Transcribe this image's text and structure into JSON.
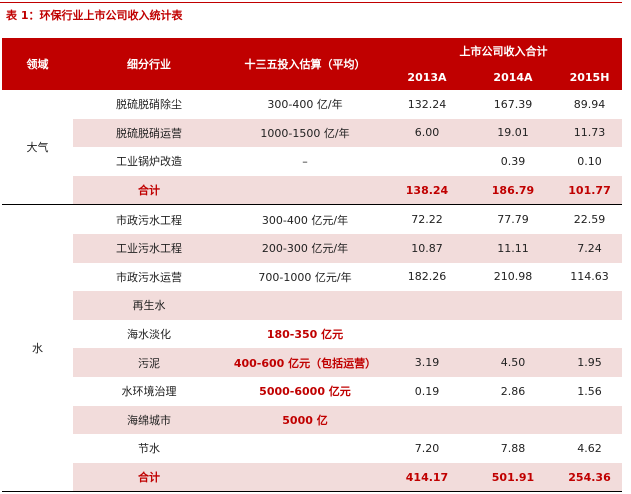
{
  "title": "表 1：环保行业上市公司收入统计表",
  "header": {
    "domain": "领域",
    "sub": "细分行业",
    "invest": "十三五投入估算（平均）",
    "revenue": "上市公司收入合计",
    "years": [
      "2013A",
      "2014A",
      "2015H"
    ]
  },
  "colors": {
    "accent": "#c00000",
    "shade": "#f2dcdb"
  },
  "groups": [
    {
      "domain": "大气",
      "rows": [
        {
          "sub": "脱硫脱硝除尘",
          "invest": "300-400 亿/年",
          "v": [
            "132.24",
            "167.39",
            "89.94"
          ]
        },
        {
          "sub": "脱硫脱硝运营",
          "invest": "1000-1500 亿/年",
          "v": [
            "6.00",
            "19.01",
            "11.73"
          ]
        },
        {
          "sub": "工业锅炉改造",
          "invest": "–",
          "v": [
            "",
            "0.39",
            "0.10"
          ]
        },
        {
          "sub": "合计",
          "invest": "",
          "v": [
            "138.24",
            "186.79",
            "101.77"
          ],
          "total": true
        }
      ]
    },
    {
      "domain": "水",
      "rows": [
        {
          "sub": "市政污水工程",
          "invest": "300-400 亿元/年",
          "v": [
            "72.22",
            "77.79",
            "22.59"
          ]
        },
        {
          "sub": "工业污水工程",
          "invest": "200-300 亿元/年",
          "v": [
            "10.87",
            "11.11",
            "7.24"
          ]
        },
        {
          "sub": "市政污水运营",
          "invest": "700-1000 亿元/年",
          "v": [
            "182.26",
            "210.98",
            "114.63"
          ]
        },
        {
          "sub": "再生水",
          "invest": "",
          "v": [
            "",
            "",
            ""
          ]
        },
        {
          "sub": "海水淡化",
          "invest": "180-350 亿元",
          "v": [
            "",
            "",
            ""
          ],
          "redInvest": true
        },
        {
          "sub": "污泥",
          "invest": "400-600 亿元（包括运营）",
          "v": [
            "3.19",
            "4.50",
            "1.95"
          ],
          "redInvest": true
        },
        {
          "sub": "水环境治理",
          "invest": "5000-6000 亿元",
          "v": [
            "0.19",
            "2.86",
            "1.56"
          ],
          "redInvest": true
        },
        {
          "sub": "海绵城市",
          "invest": "5000 亿",
          "v": [
            "",
            "",
            ""
          ],
          "redInvest": true
        },
        {
          "sub": "节水",
          "invest": "",
          "v": [
            "7.20",
            "7.88",
            "4.62"
          ]
        },
        {
          "sub": "合计",
          "invest": "",
          "v": [
            "414.17",
            "501.91",
            "254.36"
          ],
          "total": true
        }
      ]
    }
  ]
}
